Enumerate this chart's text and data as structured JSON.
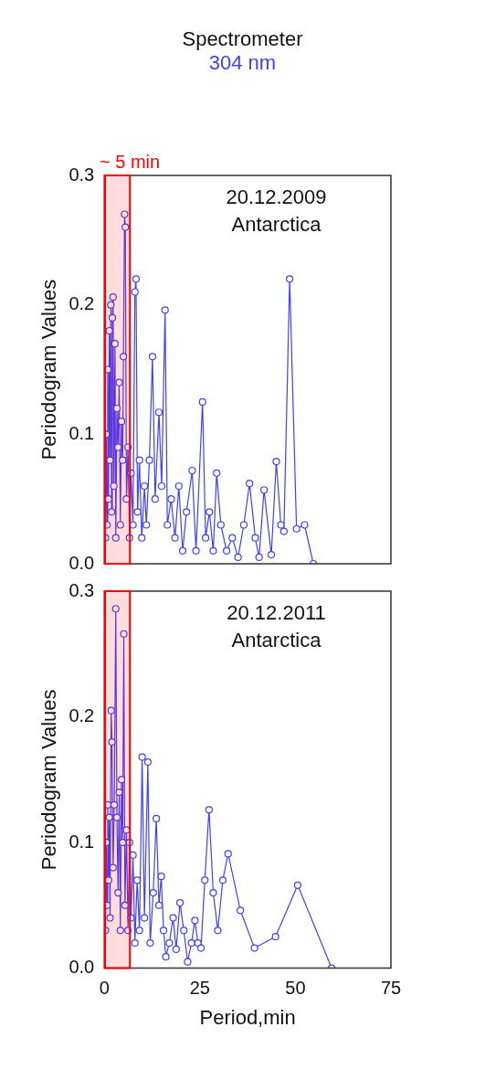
{
  "chart_data": [
    {
      "type": "line",
      "title": "Spectrometer",
      "subtitle": "304 nm",
      "ylabel": "Periodogram Values",
      "annotations": [
        "20.12.2009",
        "Antarctica"
      ],
      "xlim": [
        0,
        75
      ],
      "xticks": [
        0,
        25,
        50,
        75
      ],
      "ylim": [
        0,
        0.3
      ],
      "yticks": [
        {
          "value": 0,
          "label": "0.0"
        },
        0.1,
        0.2,
        0.3
      ],
      "tick_labels": "y",
      "grid": false,
      "marker": "circle",
      "line_style": "solid",
      "bands": [
        {
          "axis": "x",
          "from": 0.2,
          "to": 6.7,
          "label": "~ 5 min",
          "color": "#ff0000"
        }
      ],
      "series": [
        {
          "color": "#4040ff",
          "x": [
            0.3,
            0.5,
            0.7,
            0.9,
            1.1,
            1.3,
            1.5,
            1.7,
            1.9,
            2.1,
            2.3,
            2.5,
            2.8,
            3.0,
            3.3,
            3.6,
            3.9,
            4.2,
            4.5,
            4.8,
            5.0,
            5.3,
            5.5,
            5.8,
            6.2,
            6.6,
            7.0,
            7.5,
            8.0,
            8.3,
            8.7,
            9.2,
            9.8,
            10.5,
            11.0,
            11.8,
            12.6,
            13.3,
            14.3,
            15.0,
            15.9,
            16.5,
            17.5,
            18.5,
            19.5,
            20.5,
            21.5,
            23.0,
            24.0,
            25.7,
            26.5,
            27.5,
            28.5,
            29.4,
            30.5,
            32.0,
            33.5,
            35.0,
            36.5,
            38.0,
            39.5,
            40.5,
            41.8,
            43.7,
            45.0,
            46.2,
            47.0,
            48.5,
            50.3,
            52.4,
            54.7
          ],
          "values": [
            0.02,
            0.1,
            0.03,
            0.15,
            0.05,
            0.18,
            0.08,
            0.2,
            0.04,
            0.19,
            0.206,
            0.06,
            0.17,
            0.02,
            0.12,
            0.09,
            0.14,
            0.03,
            0.11,
            0.08,
            0.16,
            0.27,
            0.26,
            0.05,
            0.09,
            0.02,
            0.07,
            0.03,
            0.21,
            0.22,
            0.04,
            0.08,
            0.02,
            0.06,
            0.03,
            0.08,
            0.16,
            0.05,
            0.117,
            0.06,
            0.196,
            0.03,
            0.05,
            0.02,
            0.06,
            0.01,
            0.04,
            0.072,
            0.01,
            0.125,
            0.02,
            0.04,
            0.01,
            0.07,
            0.03,
            0.01,
            0.02,
            0.005,
            0.03,
            0.062,
            0.02,
            0.005,
            0.057,
            0.007,
            0.079,
            0.03,
            0.025,
            0.22,
            0.027,
            0.03,
            0.0
          ]
        }
      ]
    },
    {
      "type": "line",
      "ylabel": "Periodogram Values",
      "xlabel": "Period,min",
      "annotations": [
        "20.12.2011",
        "Antarctica"
      ],
      "xlim": [
        0,
        75
      ],
      "xticks": [
        0,
        25,
        50,
        75
      ],
      "ylim": [
        0,
        0.3
      ],
      "yticks": [
        {
          "value": 0,
          "label": "0.0"
        },
        0.1,
        0.2,
        0.3
      ],
      "grid": false,
      "marker": "circle",
      "line_style": "solid",
      "bands": [
        {
          "axis": "x",
          "from": 0.2,
          "to": 6.7,
          "color": "#ff0000"
        }
      ],
      "series": [
        {
          "color": "#4040ff",
          "x": [
            0.3,
            0.5,
            0.7,
            0.9,
            1.1,
            1.3,
            1.5,
            1.8,
            2.0,
            2.3,
            2.6,
            3.0,
            3.3,
            3.6,
            3.9,
            4.2,
            4.5,
            4.8,
            5.1,
            5.4,
            5.8,
            6.2,
            6.6,
            7.0,
            7.5,
            8.0,
            8.6,
            9.2,
            9.9,
            10.5,
            11.4,
            12.0,
            12.8,
            13.6,
            14.3,
            14.9,
            15.5,
            16.1,
            17.0,
            18.0,
            18.8,
            19.8,
            20.8,
            21.8,
            22.8,
            23.7,
            24.5,
            25.3,
            26.3,
            27.4,
            28.5,
            29.7,
            31.0,
            32.4,
            35.6,
            39.3,
            44.8,
            50.6,
            59.5
          ],
          "values": [
            0.03,
            0.1,
            0.05,
            0.13,
            0.07,
            0.12,
            0.04,
            0.205,
            0.18,
            0.08,
            0.13,
            0.286,
            0.12,
            0.06,
            0.14,
            0.03,
            0.15,
            0.1,
            0.266,
            0.05,
            0.11,
            0.03,
            0.1,
            0.04,
            0.09,
            0.02,
            0.07,
            0.03,
            0.168,
            0.04,
            0.164,
            0.02,
            0.06,
            0.119,
            0.05,
            0.073,
            0.03,
            0.009,
            0.02,
            0.04,
            0.015,
            0.052,
            0.03,
            0.005,
            0.02,
            0.038,
            0.02,
            0.016,
            0.07,
            0.126,
            0.06,
            0.03,
            0.07,
            0.091,
            0.046,
            0.016,
            0.025,
            0.066,
            0.0
          ]
        }
      ]
    }
  ]
}
